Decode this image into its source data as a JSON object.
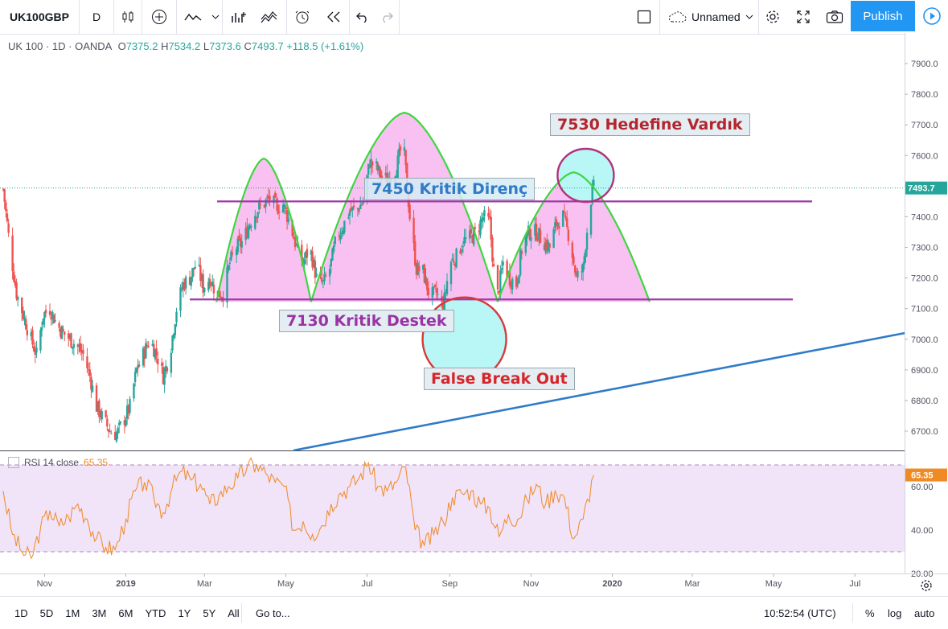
{
  "toolbar": {
    "symbol": "UK100GBP",
    "interval": "D",
    "layout_name": "Unnamed",
    "publish_label": "Publish"
  },
  "legend": {
    "title": "UK 100 · 1D · OANDA",
    "open_label": "O",
    "open": "7375.2",
    "high_label": "H",
    "high": "7534.2",
    "low_label": "L",
    "low": "7373.6",
    "close_label": "C",
    "close": "7493.7",
    "change": "+118.5 (+1.61%)"
  },
  "rsi": {
    "label": "RSI 14 close",
    "value": "65.35"
  },
  "callouts": {
    "target": "7530 Hedefine Vardık",
    "resistance": "7450 Kritik Direnç",
    "support": "7130 Kritik Destek",
    "false_break": "False Break Out"
  },
  "bottom": {
    "ranges": [
      "1D",
      "5D",
      "1M",
      "3M",
      "6M",
      "YTD",
      "1Y",
      "5Y",
      "All"
    ],
    "goto": "Go to...",
    "time": "10:52:54 (UTC)",
    "percent": "%",
    "log": "log",
    "auto": "auto"
  },
  "colors": {
    "up": "#26a69a",
    "down": "#ef5350",
    "pattern_fill": "#f7b6f0",
    "pattern_stroke": "#3fd63f",
    "level_line": "#a03aa8",
    "trend_line": "#2f7bc8",
    "highlight_fill": "#b8f7f5",
    "false_break_circle": "#d63a3a",
    "target_circle": "#b0327a",
    "rsi_line": "#f08a24",
    "rsi_band": "#f1e3f8"
  },
  "chart_data": [
    {
      "type": "candlestick",
      "title": "UK 100 · 1D · OANDA",
      "ylim": [
        6620,
        8000
      ],
      "y_ticks": [
        6700,
        6800,
        6900,
        7000,
        7100,
        7200,
        7300,
        7400,
        7500,
        7600,
        7700,
        7800,
        7900
      ],
      "x_tick_labels": [
        "Nov",
        "2019",
        "Mar",
        "May",
        "Jul",
        "Sep",
        "Nov",
        "2020",
        "Mar",
        "May",
        "Jul"
      ],
      "last_price": 7493.7,
      "close_path": [
        [
          "2018-10-01",
          7490
        ],
        [
          "2018-10-06",
          7300
        ],
        [
          "2018-10-11",
          7150
        ],
        [
          "2018-10-16",
          7080
        ],
        [
          "2018-10-21",
          7010
        ],
        [
          "2018-10-26",
          6950
        ],
        [
          "2018-10-31",
          7080
        ],
        [
          "2018-11-05",
          7100
        ],
        [
          "2018-11-10",
          7050
        ],
        [
          "2018-11-15",
          7020
        ],
        [
          "2018-11-20",
          7000
        ],
        [
          "2018-11-25",
          6980
        ],
        [
          "2018-11-30",
          6950
        ],
        [
          "2018-12-05",
          6880
        ],
        [
          "2018-12-10",
          6780
        ],
        [
          "2018-12-15",
          6740
        ],
        [
          "2018-12-20",
          6700
        ],
        [
          "2018-12-25",
          6690
        ],
        [
          "2018-12-30",
          6730
        ],
        [
          "2019-01-04",
          6780
        ],
        [
          "2019-01-09",
          6900
        ],
        [
          "2019-01-14",
          6950
        ],
        [
          "2019-01-19",
          7000
        ],
        [
          "2019-01-24",
          6950
        ],
        [
          "2019-01-29",
          6880
        ],
        [
          "2019-02-03",
          6950
        ],
        [
          "2019-02-08",
          7100
        ],
        [
          "2019-02-13",
          7180
        ],
        [
          "2019-02-18",
          7200
        ],
        [
          "2019-02-23",
          7250
        ],
        [
          "2019-02-28",
          7170
        ],
        [
          "2019-03-05",
          7200
        ],
        [
          "2019-03-10",
          7150
        ],
        [
          "2019-03-15",
          7150
        ],
        [
          "2019-03-20",
          7250
        ],
        [
          "2019-03-25",
          7300
        ],
        [
          "2019-03-30",
          7320
        ],
        [
          "2019-04-04",
          7380
        ],
        [
          "2019-04-09",
          7420
        ],
        [
          "2019-04-14",
          7440
        ],
        [
          "2019-04-19",
          7460
        ],
        [
          "2019-04-24",
          7430
        ],
        [
          "2019-04-29",
          7440
        ],
        [
          "2019-05-04",
          7380
        ],
        [
          "2019-05-09",
          7300
        ],
        [
          "2019-05-14",
          7250
        ],
        [
          "2019-05-19",
          7300
        ],
        [
          "2019-05-24",
          7200
        ],
        [
          "2019-05-29",
          7180
        ],
        [
          "2019-06-03",
          7230
        ],
        [
          "2019-06-08",
          7330
        ],
        [
          "2019-06-13",
          7370
        ],
        [
          "2019-06-18",
          7420
        ],
        [
          "2019-06-23",
          7420
        ],
        [
          "2019-06-28",
          7450
        ],
        [
          "2019-07-03",
          7580
        ],
        [
          "2019-07-08",
          7560
        ],
        [
          "2019-07-13",
          7520
        ],
        [
          "2019-07-18",
          7530
        ],
        [
          "2019-07-23",
          7560
        ],
        [
          "2019-07-28",
          7650
        ],
        [
          "2019-08-02",
          7400
        ],
        [
          "2019-08-07",
          7230
        ],
        [
          "2019-08-12",
          7220
        ],
        [
          "2019-08-17",
          7140
        ],
        [
          "2019-08-22",
          7150
        ],
        [
          "2019-08-27",
          7100
        ],
        [
          "2019-09-01",
          7250
        ],
        [
          "2019-09-06",
          7270
        ],
        [
          "2019-09-11",
          7320
        ],
        [
          "2019-09-16",
          7330
        ],
        [
          "2019-09-21",
          7350
        ],
        [
          "2019-09-26",
          7400
        ],
        [
          "2019-10-01",
          7380
        ],
        [
          "2019-10-06",
          7120
        ],
        [
          "2019-10-11",
          7250
        ],
        [
          "2019-10-16",
          7200
        ],
        [
          "2019-10-21",
          7180
        ],
        [
          "2019-10-26",
          7320
        ],
        [
          "2019-10-31",
          7350
        ],
        [
          "2019-11-05",
          7350
        ],
        [
          "2019-11-10",
          7320
        ],
        [
          "2019-11-15",
          7300
        ],
        [
          "2019-11-20",
          7380
        ],
        [
          "2019-11-25",
          7400
        ],
        [
          "2019-11-30",
          7330
        ],
        [
          "2019-12-05",
          7200
        ],
        [
          "2019-12-10",
          7230
        ],
        [
          "2019-12-15",
          7440
        ],
        [
          "2019-12-18",
          7494
        ]
      ],
      "annotations": [
        {
          "type": "horizontal-level",
          "label": "7450 Kritik Direnç",
          "y": 7450
        },
        {
          "type": "horizontal-level",
          "label": "7130 Kritik Destek",
          "y": 7130
        },
        {
          "type": "pattern",
          "label": "three arches"
        },
        {
          "type": "circle",
          "label": "False Break Out"
        },
        {
          "type": "circle",
          "label": "7530 Hedefine Vardık"
        },
        {
          "type": "trend-line"
        }
      ]
    },
    {
      "type": "line",
      "title": "RSI 14 close",
      "ylim": [
        18,
        72
      ],
      "y_ticks": [
        20,
        40,
        60
      ],
      "band": [
        30,
        70
      ],
      "last_value": 65.35,
      "values": [
        [
          "2018-10-01",
          58
        ],
        [
          "2018-10-08",
          38
        ],
        [
          "2018-10-15",
          30
        ],
        [
          "2018-10-22",
          27
        ],
        [
          "2018-10-29",
          41
        ],
        [
          "2018-11-05",
          49
        ],
        [
          "2018-11-12",
          42
        ],
        [
          "2018-11-19",
          46
        ],
        [
          "2018-11-26",
          52
        ],
        [
          "2018-12-03",
          45
        ],
        [
          "2018-12-10",
          36
        ],
        [
          "2018-12-17",
          32
        ],
        [
          "2018-12-24",
          31
        ],
        [
          "2019-01-01",
          45
        ],
        [
          "2019-01-08",
          58
        ],
        [
          "2019-01-15",
          62
        ],
        [
          "2019-01-22",
          55
        ],
        [
          "2019-01-29",
          48
        ],
        [
          "2019-02-05",
          60
        ],
        [
          "2019-02-12",
          67
        ],
        [
          "2019-02-19",
          63
        ],
        [
          "2019-02-26",
          61
        ],
        [
          "2019-03-05",
          52
        ],
        [
          "2019-03-12",
          56
        ],
        [
          "2019-03-19",
          60
        ],
        [
          "2019-03-26",
          64
        ],
        [
          "2019-04-02",
          69
        ],
        [
          "2019-04-09",
          70
        ],
        [
          "2019-04-16",
          66
        ],
        [
          "2019-04-23",
          62
        ],
        [
          "2019-04-30",
          60
        ],
        [
          "2019-05-07",
          40
        ],
        [
          "2019-05-14",
          44
        ],
        [
          "2019-05-21",
          38
        ],
        [
          "2019-05-28",
          42
        ],
        [
          "2019-06-04",
          52
        ],
        [
          "2019-06-11",
          57
        ],
        [
          "2019-06-18",
          60
        ],
        [
          "2019-06-25",
          64
        ],
        [
          "2019-07-02",
          71
        ],
        [
          "2019-07-09",
          60
        ],
        [
          "2019-07-16",
          58
        ],
        [
          "2019-07-23",
          62
        ],
        [
          "2019-07-30",
          69
        ],
        [
          "2019-08-06",
          40
        ],
        [
          "2019-08-13",
          33
        ],
        [
          "2019-08-20",
          38
        ],
        [
          "2019-08-27",
          44
        ],
        [
          "2019-09-03",
          55
        ],
        [
          "2019-09-10",
          57
        ],
        [
          "2019-09-17",
          58
        ],
        [
          "2019-09-24",
          52
        ],
        [
          "2019-10-01",
          50
        ],
        [
          "2019-10-08",
          37
        ],
        [
          "2019-10-15",
          47
        ],
        [
          "2019-10-22",
          45
        ],
        [
          "2019-10-29",
          54
        ],
        [
          "2019-11-05",
          61
        ],
        [
          "2019-11-12",
          52
        ],
        [
          "2019-11-19",
          58
        ],
        [
          "2019-11-26",
          55
        ],
        [
          "2019-12-03",
          36
        ],
        [
          "2019-12-10",
          45
        ],
        [
          "2019-12-18",
          65.35
        ]
      ]
    }
  ]
}
